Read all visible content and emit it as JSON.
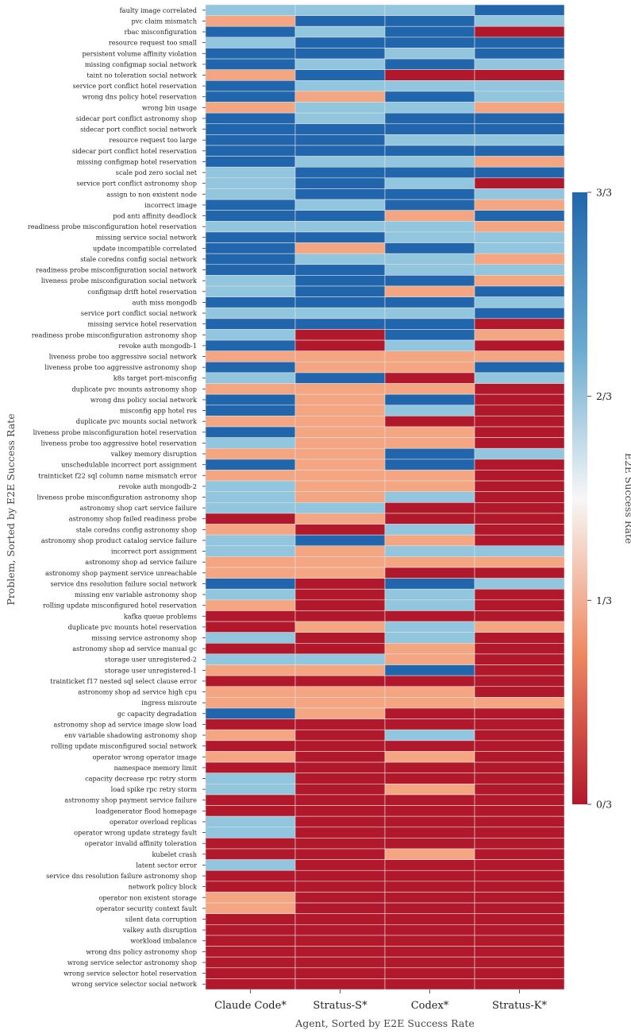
{
  "chart_data": {
    "type": "heatmap",
    "xlabel": "Agent, Sorted by E2E Success Rate",
    "ylabel": "Problem, Sorted by E2E Success Rate",
    "colorbar_label": "E2E Success Rate",
    "colorbar_ticks": [
      "0/3",
      "1/3",
      "2/3",
      "3/3"
    ],
    "value_range": [
      0,
      3
    ],
    "colormap": [
      "#b2182b",
      "#ef8a62",
      "#f7f7f7",
      "#67a9cf",
      "#2166ac"
    ],
    "grid_color": "#e0e0e0",
    "agents": [
      "Claude Code*",
      "Stratus-S*",
      "Codex*",
      "Stratus-K*"
    ],
    "problems": [
      "faulty image correlated",
      "pvc claim mismatch",
      "rbac misconfiguration",
      "resource request too small",
      "persistent volume affinity violation",
      "missing configmap social network",
      "taint no toleration social network",
      "service port conflict hotel reservation",
      "wrong dns policy hotel reservation",
      "wrong bin usage",
      "sidecar port conflict astronomy shop",
      "sidecar port conflict social network",
      "resource request too large",
      "sidecar port conflict hotel reservation",
      "missing configmap hotel reservation",
      "scale pod zero social net",
      "service port conflict astronomy shop",
      "assign to non existent node",
      "incorrect image",
      "pod anti affinity deadlock",
      "readiness probe misconfiguration hotel reservation",
      "missing service social network",
      "update incompatible correlated",
      "stale coredns config social network",
      "readiness probe misconfiguration social network",
      "liveness probe misconfiguration social network",
      "configmap drift hotel reservation",
      "auth miss mongodb",
      "service port conflict social network",
      "missing service hotel reservation",
      "readiness probe misconfiguration astronomy shop",
      "revoke auth mongodb-1",
      "liveness probe too aggressive social network",
      "liveness probe too aggressive astronomy shop",
      "k8s target port-misconfig",
      "duplicate pvc mounts astronomy shop",
      "wrong dns policy social network",
      "misconfig app hotel res",
      "duplicate pvc mounts social network",
      "liveness probe misconfiguration hotel reservation",
      "liveness probe too aggressive hotel reservation",
      "valkey memory disruption",
      "unschedulable incorrect port assignment",
      "trainticket f22 sql column name mismatch error",
      "revoke auth mongodb-2",
      "liveness probe misconfiguration astronomy shop",
      "astronomy shop cart service failure",
      "astronomy shop failed readiness probe",
      "stale coredns config astronomy shop",
      "astronomy shop product catalog service failure",
      "incorrect port assignment",
      "astronomy shop ad service failure",
      "astronomy shop payment service unreachable",
      "service dns resolution failure social network",
      "missing env variable astronomy shop",
      "rolling update misconfigured hotel reservation",
      "kafka queue problems",
      "duplicate pvc mounts hotel reservation",
      "missing service astronomy shop",
      "astronomy shop ad service manual gc",
      "storage user unregistered-2",
      "storage user unregistered-1",
      "trainticket f17 nested sql select clause error",
      "astronomy shop ad service high cpu",
      "ingress misroute",
      "gc capacity degradation",
      "astronomy shop ad service image slow load",
      "env variable shadowing astronomy shop",
      "rolling update misconfigured social network",
      "operator wrong operator image",
      "namespace memory limit",
      "capacity decrease rpc retry storm",
      "load spike rpc retry storm",
      "astronomy shop payment service failure",
      "loadgenerator flood homepage",
      "operator overload replicas",
      "operator wrong update strategy fault",
      "operator invalid affinity toleration",
      "kubelet crash",
      "latent sector error",
      "service dns resolution failure astronomy shop",
      "network policy block",
      "operator non existent storage",
      "operator security context fault",
      "silent data corruption",
      "valkey auth disruption",
      "workload imbalance",
      "wrong dns policy astronomy shop",
      "wrong service selector astronomy shop",
      "wrong service selector hotel reservation",
      "wrong service selector social network"
    ],
    "values": [
      [
        2,
        2,
        2,
        3
      ],
      [
        1,
        3,
        3,
        2
      ],
      [
        3,
        2,
        3,
        0
      ],
      [
        2,
        3,
        3,
        3
      ],
      [
        3,
        3,
        2,
        3
      ],
      [
        3,
        2,
        3,
        2
      ],
      [
        1,
        3,
        0,
        0
      ],
      [
        3,
        2,
        2,
        2
      ],
      [
        3,
        1,
        3,
        2
      ],
      [
        1,
        2,
        2,
        1
      ],
      [
        3,
        2,
        3,
        3
      ],
      [
        3,
        3,
        3,
        3
      ],
      [
        3,
        3,
        2,
        2
      ],
      [
        3,
        3,
        3,
        3
      ],
      [
        3,
        2,
        2,
        1
      ],
      [
        2,
        3,
        3,
        3
      ],
      [
        2,
        3,
        2,
        0
      ],
      [
        2,
        3,
        3,
        2
      ],
      [
        3,
        2,
        3,
        1
      ],
      [
        3,
        3,
        1,
        3
      ],
      [
        2,
        2,
        2,
        1
      ],
      [
        3,
        3,
        2,
        2
      ],
      [
        3,
        1,
        3,
        2
      ],
      [
        3,
        2,
        2,
        1
      ],
      [
        3,
        3,
        2,
        2
      ],
      [
        2,
        3,
        3,
        1
      ],
      [
        2,
        3,
        1,
        3
      ],
      [
        3,
        3,
        3,
        2
      ],
      [
        2,
        2,
        2,
        3
      ],
      [
        3,
        3,
        3,
        0
      ],
      [
        2,
        0,
        3,
        1
      ],
      [
        3,
        0,
        2,
        0
      ],
      [
        1,
        1,
        1,
        1
      ],
      [
        3,
        1,
        1,
        3
      ],
      [
        2,
        3,
        0,
        2
      ],
      [
        1,
        1,
        1,
        0
      ],
      [
        3,
        1,
        3,
        0
      ],
      [
        3,
        1,
        2,
        0
      ],
      [
        1,
        1,
        0,
        0
      ],
      [
        3,
        1,
        1,
        0
      ],
      [
        2,
        1,
        1,
        0
      ],
      [
        1,
        1,
        3,
        2
      ],
      [
        3,
        1,
        3,
        0
      ],
      [
        1,
        1,
        1,
        0
      ],
      [
        2,
        1,
        1,
        0
      ],
      [
        2,
        1,
        2,
        0
      ],
      [
        2,
        2,
        0,
        0
      ],
      [
        0,
        1,
        0,
        0
      ],
      [
        1,
        0,
        2,
        0
      ],
      [
        2,
        3,
        1,
        0
      ],
      [
        2,
        1,
        2,
        2
      ],
      [
        1,
        1,
        1,
        1
      ],
      [
        1,
        1,
        0,
        0
      ],
      [
        3,
        0,
        3,
        2
      ],
      [
        2,
        0,
        2,
        0
      ],
      [
        1,
        0,
        2,
        0
      ],
      [
        0,
        0,
        0,
        0
      ],
      [
        0,
        1,
        2,
        1
      ],
      [
        2,
        0,
        2,
        0
      ],
      [
        0,
        0,
        1,
        0
      ],
      [
        2,
        2,
        1,
        0
      ],
      [
        1,
        1,
        3,
        0
      ],
      [
        0,
        0,
        0,
        0
      ],
      [
        1,
        1,
        1,
        0
      ],
      [
        1,
        1,
        1,
        1
      ],
      [
        3,
        1,
        0,
        0
      ],
      [
        0,
        0,
        0,
        0
      ],
      [
        1,
        0,
        2,
        0
      ],
      [
        0,
        0,
        0,
        0
      ],
      [
        1,
        0,
        1,
        0
      ],
      [
        0,
        0,
        0,
        0
      ],
      [
        2,
        0,
        0,
        0
      ],
      [
        2,
        0,
        1,
        0
      ],
      [
        0,
        0,
        0,
        0
      ],
      [
        0,
        0,
        0,
        0
      ],
      [
        2,
        0,
        0,
        0
      ],
      [
        2,
        0,
        0,
        0
      ],
      [
        0,
        0,
        0,
        0
      ],
      [
        0,
        0,
        1,
        0
      ],
      [
        2,
        0,
        0,
        0
      ],
      [
        0,
        0,
        0,
        0
      ],
      [
        0,
        0,
        0,
        0
      ],
      [
        1,
        0,
        0,
        0
      ],
      [
        1,
        0,
        0,
        0
      ],
      [
        0,
        0,
        0,
        0
      ],
      [
        0,
        0,
        0,
        0
      ],
      [
        0,
        0,
        0,
        0
      ],
      [
        0,
        0,
        0,
        0
      ],
      [
        0,
        0,
        0,
        0
      ],
      [
        0,
        0,
        0,
        0
      ],
      [
        0,
        0,
        0,
        0
      ]
    ]
  }
}
